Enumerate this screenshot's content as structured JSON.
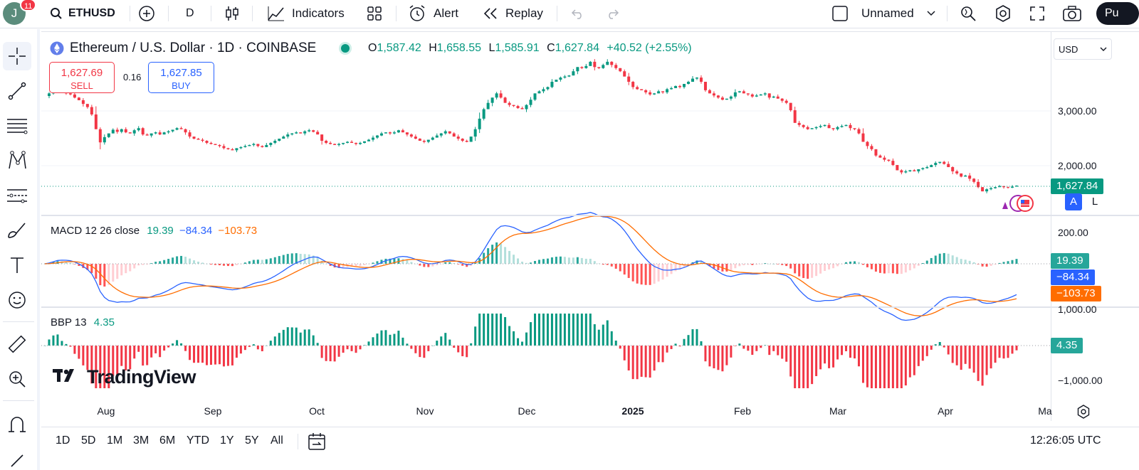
{
  "topbar": {
    "avatar_letter": "J",
    "notification_count": "11",
    "symbol": "ETHUSD",
    "interval": "D",
    "indicators_label": "Indicators",
    "alert_label": "Alert",
    "replay_label": "Replay",
    "layout_name": "Unnamed",
    "publish_label": "Pu"
  },
  "legend": {
    "title": "Ethereum / U.S. Dollar · 1D · COINBASE",
    "open_key": "O",
    "open": "1,587.42",
    "high_key": "H",
    "high": "1,658.55",
    "low_key": "L",
    "low": "1,585.91",
    "close_key": "C",
    "close": "1,627.84",
    "change": "+40.52 (+2.55%)"
  },
  "trade": {
    "sell_price": "1,627.69",
    "sell_label": "SELL",
    "spread": "0.16",
    "buy_price": "1,627.85",
    "buy_label": "BUY"
  },
  "currency": "USD",
  "price_axis": {
    "ticks": [
      "3,000.00",
      "2,000.00"
    ],
    "last_price": "1,627.84",
    "auto_label": "A",
    "log_label": "L"
  },
  "macd": {
    "label": "MACD 12 26 close",
    "hist": "19.39",
    "macd": "−84.34",
    "signal": "−103.73",
    "axis_tick": "200.00",
    "axis_tick2": "1,000.00"
  },
  "bbp": {
    "label": "BBP 13",
    "value": "4.35",
    "axis_tick": "−1,000.00"
  },
  "watermark": "TradingView",
  "time_axis": [
    "Aug",
    "Sep",
    "Oct",
    "Nov",
    "Dec",
    "2025",
    "Feb",
    "Mar",
    "Apr",
    "Ma"
  ],
  "ranges": [
    "1D",
    "5D",
    "1M",
    "3M",
    "6M",
    "YTD",
    "1Y",
    "5Y",
    "All"
  ],
  "clock": "12:26:05 UTC",
  "colors": {
    "up": "#089981",
    "down": "#f23645",
    "macd_line": "#2962ff",
    "signal_line": "#ff6d00"
  },
  "chart_data": {
    "type": "candlestick",
    "series_close": [
      3330,
      3380,
      3420,
      3440,
      3400,
      3380,
      3360,
      3300,
      3250,
      3180,
      3120,
      2980,
      2700,
      2450,
      2550,
      2620,
      2690,
      2650,
      2700,
      2640,
      2620,
      2680,
      2720,
      2600,
      2580,
      2620,
      2640,
      2600,
      2640,
      2660,
      2690,
      2720,
      2700,
      2640,
      2560,
      2520,
      2500,
      2480,
      2440,
      2420,
      2400,
      2380,
      2340,
      2320,
      2300,
      2340,
      2360,
      2380,
      2400,
      2420,
      2380,
      2360,
      2400,
      2440,
      2480,
      2520,
      2560,
      2600,
      2620,
      2640,
      2620,
      2660,
      2680,
      2650,
      2600,
      2480,
      2440,
      2420,
      2400,
      2420,
      2440,
      2460,
      2440,
      2420,
      2440,
      2470,
      2500,
      2540,
      2580,
      2620,
      2640,
      2620,
      2640,
      2680,
      2640,
      2600,
      2560,
      2520,
      2480,
      2460,
      2500,
      2540,
      2580,
      2620,
      2660,
      2620,
      2560,
      2520,
      2480,
      2460,
      2560,
      2700,
      2900,
      3080,
      3200,
      3300,
      3380,
      3300,
      3200,
      3160,
      3140,
      3100,
      3080,
      3160,
      3260,
      3380,
      3420,
      3460,
      3500,
      3600,
      3640,
      3680,
      3700,
      3720,
      3800,
      3880,
      3860,
      3900,
      3980,
      3880,
      3860,
      3920,
      3980,
      3920,
      3860,
      3800,
      3700,
      3600,
      3500,
      3460,
      3440,
      3400,
      3360,
      3380,
      3420,
      3400,
      3460,
      3480,
      3520,
      3500,
      3560,
      3600,
      3660,
      3680,
      3600,
      3440,
      3380,
      3340,
      3300,
      3260,
      3280,
      3320,
      3400,
      3420,
      3380,
      3360,
      3320,
      3340,
      3360,
      3380,
      3300,
      3320,
      3280,
      3240,
      3200,
      3060,
      2820,
      2780,
      2740,
      2700,
      2720,
      2740,
      2760,
      2780,
      2720,
      2700,
      2740,
      2760,
      2780,
      2720,
      2700,
      2620,
      2460,
      2380,
      2320,
      2200,
      2160,
      2120,
      2100,
      2020,
      1920,
      1880,
      1900,
      1920,
      1900,
      1940,
      1960,
      1980,
      2020,
      2060,
      2080,
      2040,
      1980,
      1900,
      1860,
      1800,
      1820,
      1760,
      1700,
      1600,
      1520,
      1560,
      1580,
      1600,
      1620,
      1600,
      1590,
      1610,
      1628
    ],
    "ylim": [
      1400,
      4100
    ],
    "time_axis": [
      "Aug",
      "Sep",
      "Oct",
      "Nov",
      "Dec",
      "2025",
      "Feb",
      "Mar",
      "Apr",
      "Ma"
    ]
  }
}
